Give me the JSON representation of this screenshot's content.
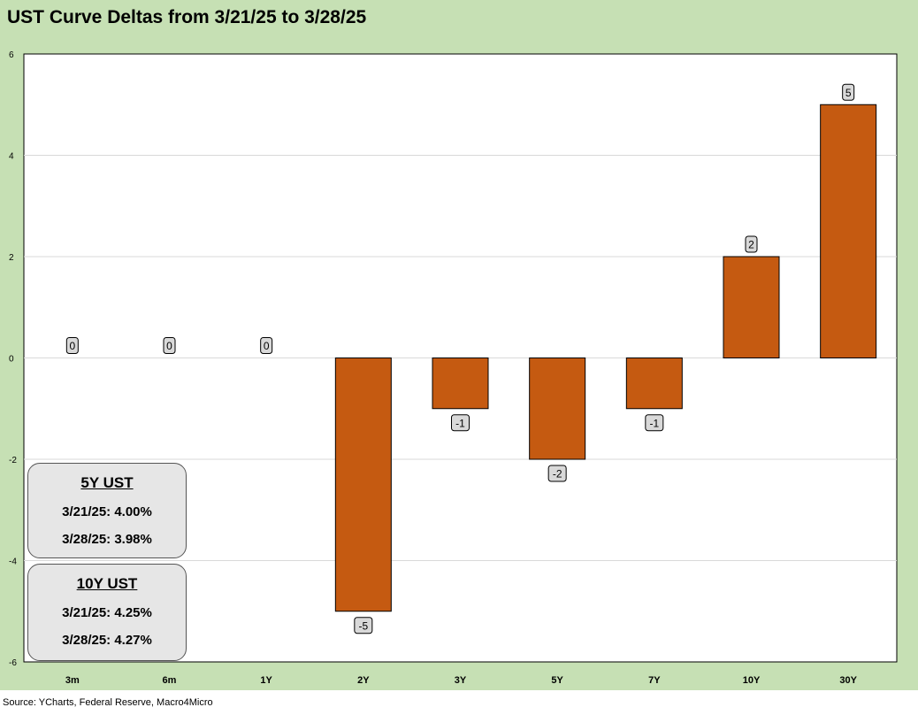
{
  "title": "UST Curve Deltas from 3/21/25 to 3/28/25",
  "source": "Source: YCharts, Federal Reserve, Macro4Micro",
  "chart_data": {
    "type": "bar",
    "title": "UST Curve Deltas from 3/21/25 to 3/28/25",
    "categories": [
      "3m",
      "6m",
      "1Y",
      "2Y",
      "3Y",
      "5Y",
      "7Y",
      "10Y",
      "30Y"
    ],
    "values": [
      0,
      0,
      0,
      -5,
      -1,
      -2,
      -1,
      2,
      5
    ],
    "data_labels": [
      "0",
      "0",
      "0",
      "-5",
      "-1",
      "-2",
      "-1",
      "2",
      "5"
    ],
    "ylim": [
      -6,
      6
    ],
    "yticks": [
      6,
      4,
      2,
      0,
      -2,
      -4,
      -6
    ],
    "grid": true,
    "legend": "none",
    "bar_color": "#c55a11",
    "xlabel": "",
    "ylabel": ""
  },
  "annotations": {
    "box_5y": {
      "title": "5Y UST",
      "line1": "3/21/25: 4.00%",
      "line2": "3/28/25: 3.98%"
    },
    "box_10y": {
      "title": "10Y UST",
      "line1": "3/21/25: 4.25%",
      "line2": "3/28/25: 4.27%"
    }
  },
  "colors": {
    "frame_background": "#c6e0b4",
    "bar": "#c55a11",
    "box_fill": "#e6e6e6"
  }
}
